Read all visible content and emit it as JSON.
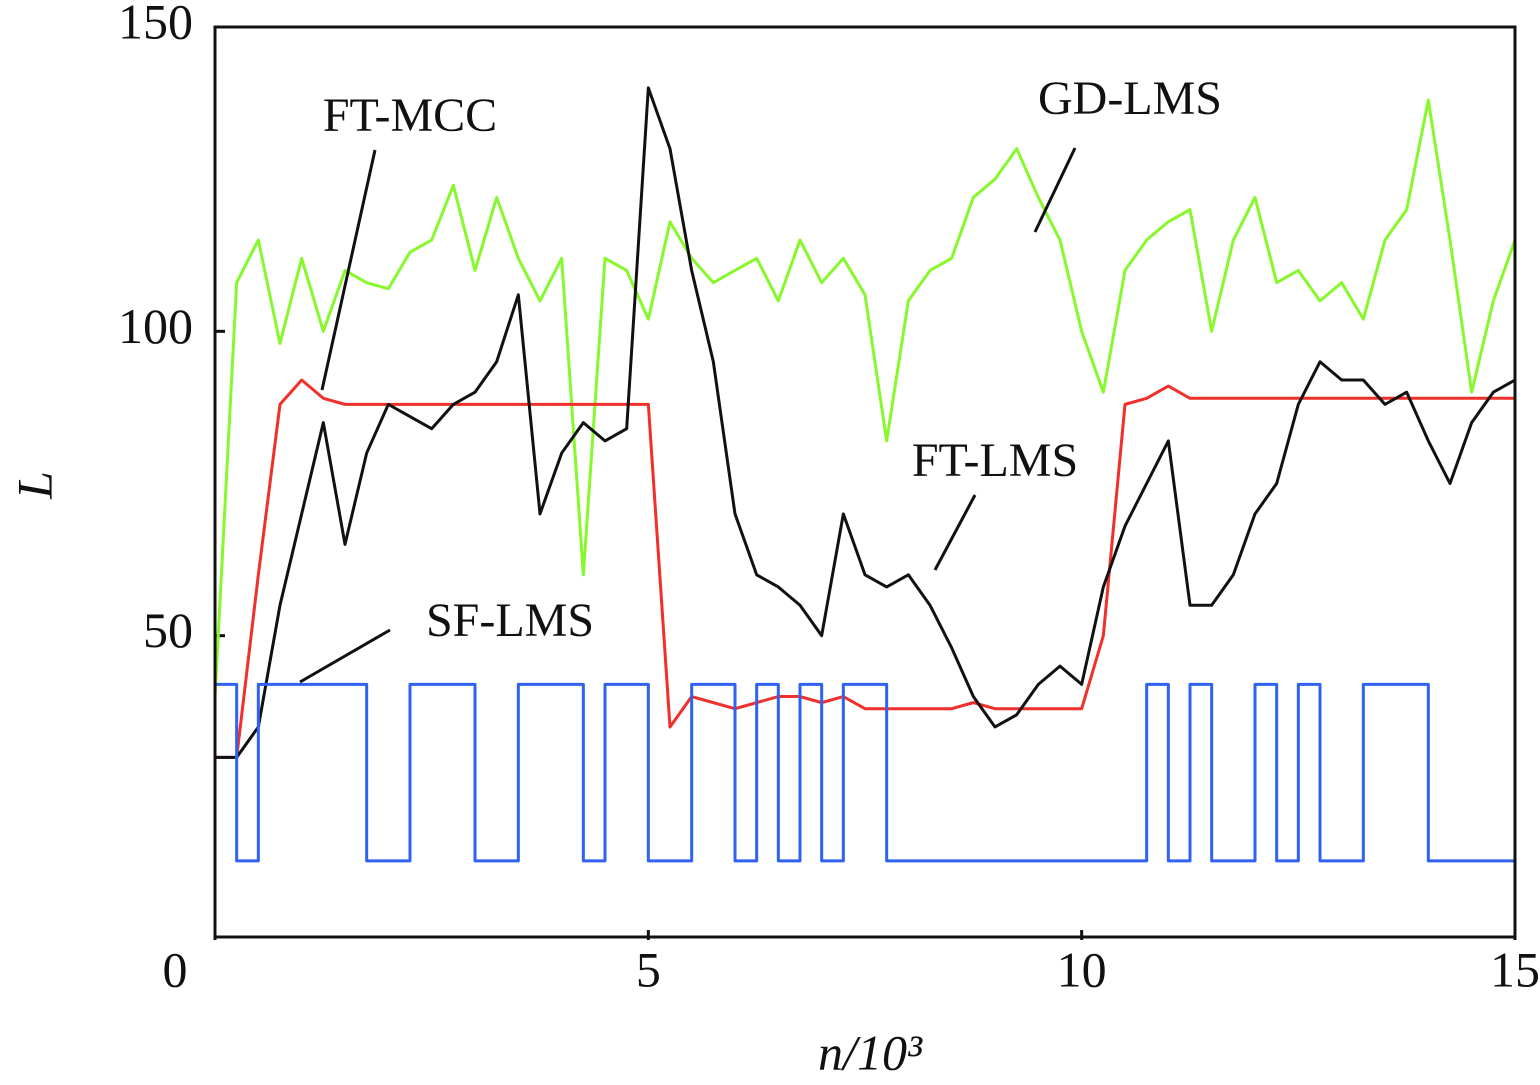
{
  "chart_data": {
    "type": "line",
    "x_label": "n/10³",
    "y_label": "L",
    "x": [
      0,
      0.25,
      0.5,
      0.75,
      1,
      1.25,
      1.5,
      1.75,
      2,
      2.25,
      2.5,
      2.75,
      3,
      3.25,
      3.5,
      3.75,
      4,
      4.25,
      4.5,
      4.75,
      5,
      5.25,
      5.5,
      5.75,
      6,
      6.25,
      6.5,
      6.75,
      7,
      7.25,
      7.5,
      7.75,
      8,
      8.25,
      8.5,
      8.75,
      9,
      9.25,
      9.5,
      9.75,
      10,
      10.25,
      10.5,
      10.75,
      11,
      11.25,
      11.5,
      11.75,
      12,
      12.25,
      12.5,
      12.75,
      13,
      13.25,
      13.5,
      13.75,
      14,
      14.25,
      14.5,
      14.75,
      15
    ],
    "xlim": [
      0,
      15
    ],
    "xticks": [
      0,
      5,
      10,
      15
    ],
    "ylim": [
      0,
      150
    ],
    "yticks": [
      50,
      100,
      150
    ],
    "grid": false,
    "series": [
      {
        "name": "GD-LMS",
        "color": "#86f82c",
        "values": [
          40,
          108,
          115,
          98,
          112,
          100,
          110,
          108,
          107,
          113,
          115,
          124,
          110,
          122,
          112,
          105,
          112,
          60,
          112,
          110,
          102,
          118,
          112,
          108,
          110,
          112,
          105,
          115,
          108,
          112,
          106,
          82,
          105,
          110,
          112,
          122,
          125,
          130,
          122,
          115,
          100,
          90,
          110,
          115,
          118,
          120,
          100,
          115,
          122,
          108,
          110,
          105,
          108,
          102,
          115,
          120,
          138,
          115,
          90,
          105,
          115
        ]
      },
      {
        "name": "FT-MCC",
        "color": "#f0302a",
        "values": [
          30,
          30,
          60,
          88,
          92,
          89,
          88,
          88,
          88,
          88,
          88,
          88,
          88,
          88,
          88,
          88,
          88,
          88,
          88,
          88,
          88,
          35,
          40,
          39,
          38,
          39,
          40,
          40,
          39,
          40,
          38,
          38,
          38,
          38,
          38,
          39,
          38,
          38,
          38,
          38,
          38,
          50,
          88,
          89,
          91,
          89,
          89,
          89,
          89,
          89,
          89,
          89,
          89,
          89,
          89,
          89,
          89,
          89,
          89,
          89,
          89
        ]
      },
      {
        "name": "FT-LMS",
        "color": "#111111",
        "values": [
          30,
          30,
          35,
          55,
          70,
          85,
          65,
          80,
          88,
          86,
          84,
          88,
          90,
          95,
          106,
          70,
          80,
          85,
          82,
          84,
          140,
          130,
          110,
          95,
          70,
          60,
          58,
          55,
          50,
          70,
          60,
          58,
          60,
          55,
          48,
          40,
          35,
          37,
          42,
          45,
          42,
          58,
          68,
          75,
          82,
          55,
          55,
          60,
          70,
          75,
          88,
          95,
          92,
          92,
          88,
          90,
          82,
          75,
          85,
          90,
          92
        ]
      },
      {
        "name": "SF-LMS",
        "color": "#2f62f0",
        "step": true,
        "values": [
          42,
          13,
          42,
          42,
          42,
          42,
          42,
          13,
          13,
          42,
          42,
          42,
          13,
          13,
          42,
          42,
          42,
          13,
          42,
          42,
          13,
          13,
          42,
          42,
          13,
          42,
          13,
          42,
          13,
          42,
          42,
          13,
          13,
          13,
          13,
          13,
          13,
          13,
          13,
          13,
          13,
          13,
          13,
          42,
          13,
          42,
          13,
          13,
          42,
          13,
          42,
          13,
          13,
          42,
          42,
          42,
          13,
          13,
          13,
          13,
          13
        ]
      }
    ]
  }
}
